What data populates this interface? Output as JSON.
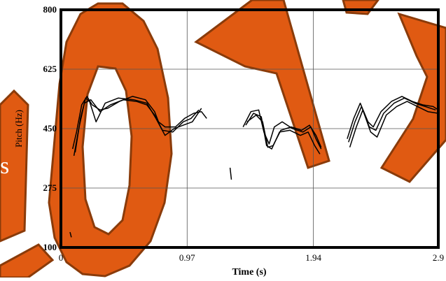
{
  "chart_data": {
    "type": "line",
    "title": "",
    "xlabel": "Time (s)",
    "ylabel": "Pitch (Hz)",
    "xlim": [
      0,
      2.9
    ],
    "ylim": [
      100,
      800
    ],
    "grid": true,
    "x_ticks": [
      {
        "value": 0,
        "label": "0"
      },
      {
        "value": 0.97,
        "label": "0.97"
      },
      {
        "value": 1.94,
        "label": "1.94"
      },
      {
        "value": 2.9,
        "label": "2.9"
      }
    ],
    "y_ticks": [
      {
        "value": 100,
        "label": "100"
      },
      {
        "value": 275,
        "label": "275"
      },
      {
        "value": 450,
        "label": "450"
      },
      {
        "value": 625,
        "label": "625"
      },
      {
        "value": 800,
        "label": "800"
      }
    ],
    "series": [
      {
        "values": [
          [
            0.09,
            390
          ],
          [
            0.12,
            440
          ],
          [
            0.16,
            520
          ],
          [
            0.2,
            545
          ],
          [
            0.24,
            520
          ],
          [
            0.3,
            505
          ],
          [
            0.36,
            510
          ],
          [
            0.45,
            530
          ],
          [
            0.55,
            545
          ],
          [
            0.65,
            535
          ],
          [
            0.72,
            500
          ],
          [
            0.75,
            470
          ],
          [
            0.8,
            455
          ],
          [
            0.88,
            455
          ],
          [
            0.95,
            480
          ],
          [
            1.02,
            495
          ],
          [
            1.08,
            500
          ],
          [
            1.12,
            480
          ]
        ]
      },
      {
        "values": [
          [
            0.1,
            370
          ],
          [
            0.14,
            455
          ],
          [
            0.18,
            525
          ],
          [
            0.23,
            535
          ],
          [
            0.3,
            500
          ],
          [
            0.38,
            520
          ],
          [
            0.48,
            535
          ],
          [
            0.58,
            530
          ],
          [
            0.66,
            520
          ],
          [
            0.72,
            490
          ],
          [
            0.78,
            445
          ],
          [
            0.86,
            440
          ],
          [
            0.94,
            470
          ],
          [
            1.0,
            480
          ],
          [
            1.06,
            505
          ]
        ]
      },
      {
        "values": [
          [
            0.11,
            380
          ],
          [
            0.15,
            480
          ],
          [
            0.19,
            540
          ],
          [
            0.22,
            530
          ],
          [
            0.27,
            470
          ],
          [
            0.34,
            525
          ],
          [
            0.44,
            540
          ],
          [
            0.56,
            535
          ],
          [
            0.66,
            525
          ],
          [
            0.73,
            480
          ],
          [
            0.8,
            430
          ],
          [
            0.87,
            450
          ],
          [
            0.94,
            460
          ],
          [
            1.01,
            470
          ],
          [
            1.08,
            510
          ]
        ]
      },
      {
        "values": [
          [
            1.4,
            455
          ],
          [
            1.46,
            500
          ],
          [
            1.52,
            505
          ],
          [
            1.56,
            440
          ],
          [
            1.6,
            405
          ],
          [
            1.64,
            455
          ],
          [
            1.7,
            470
          ],
          [
            1.78,
            450
          ],
          [
            1.86,
            440
          ],
          [
            1.92,
            455
          ],
          [
            1.96,
            420
          ],
          [
            2.0,
            390
          ]
        ]
      },
      {
        "values": [
          [
            1.42,
            460
          ],
          [
            1.48,
            495
          ],
          [
            1.54,
            485
          ],
          [
            1.58,
            400
          ],
          [
            1.62,
            390
          ],
          [
            1.68,
            440
          ],
          [
            1.76,
            445
          ],
          [
            1.84,
            430
          ],
          [
            1.9,
            440
          ],
          [
            1.95,
            400
          ],
          [
            1.99,
            375
          ]
        ]
      },
      {
        "values": [
          [
            1.43,
            470
          ],
          [
            1.5,
            490
          ],
          [
            1.55,
            470
          ],
          [
            1.59,
            395
          ],
          [
            1.63,
            400
          ],
          [
            1.69,
            445
          ],
          [
            1.77,
            455
          ],
          [
            1.85,
            445
          ],
          [
            1.91,
            460
          ],
          [
            1.96,
            430
          ],
          [
            2.0,
            395
          ]
        ]
      },
      {
        "values": [
          [
            2.2,
            420
          ],
          [
            2.25,
            480
          ],
          [
            2.3,
            525
          ],
          [
            2.36,
            470
          ],
          [
            2.4,
            455
          ],
          [
            2.46,
            500
          ],
          [
            2.54,
            530
          ],
          [
            2.62,
            545
          ],
          [
            2.7,
            530
          ],
          [
            2.78,
            520
          ],
          [
            2.86,
            515
          ],
          [
            2.9,
            505
          ]
        ]
      },
      {
        "values": [
          [
            2.21,
            410
          ],
          [
            2.26,
            470
          ],
          [
            2.31,
            515
          ],
          [
            2.37,
            455
          ],
          [
            2.42,
            445
          ],
          [
            2.48,
            495
          ],
          [
            2.56,
            525
          ],
          [
            2.64,
            540
          ],
          [
            2.72,
            525
          ],
          [
            2.8,
            515
          ],
          [
            2.88,
            505
          ]
        ]
      },
      {
        "values": [
          [
            2.22,
            395
          ],
          [
            2.27,
            455
          ],
          [
            2.32,
            505
          ],
          [
            2.38,
            440
          ],
          [
            2.43,
            425
          ],
          [
            2.5,
            490
          ],
          [
            2.58,
            515
          ],
          [
            2.66,
            530
          ],
          [
            2.74,
            515
          ],
          [
            2.82,
            500
          ],
          [
            2.9,
            495
          ]
        ]
      },
      {
        "values": [
          [
            1.3,
            335
          ],
          [
            1.31,
            300
          ]
        ]
      },
      {
        "values": [
          [
            0.07,
            145
          ],
          [
            0.08,
            130
          ]
        ]
      }
    ]
  }
}
